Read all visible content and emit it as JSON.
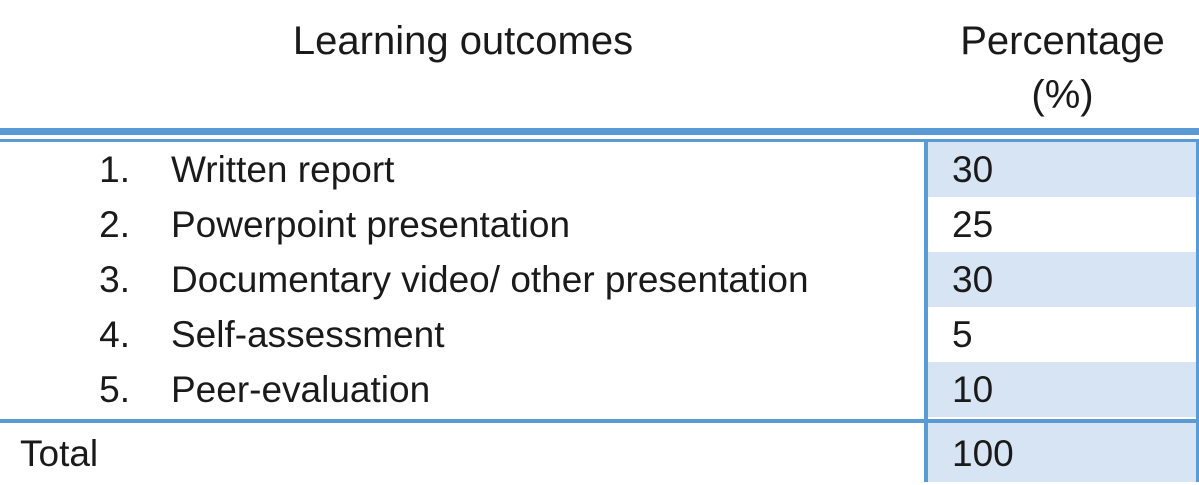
{
  "header": {
    "outcomes_label": "Learning outcomes",
    "percentage_line1": "Percentage",
    "percentage_line2": "(%)"
  },
  "rows": [
    {
      "number": "1.",
      "label": "Written report",
      "percentage": "30"
    },
    {
      "number": "2.",
      "label": "Powerpoint presentation",
      "percentage": "25"
    },
    {
      "number": "3.",
      "label": "Documentary video/ other presentation",
      "percentage": "30"
    },
    {
      "number": "4.",
      "label": "Self-assessment",
      "percentage": "5"
    },
    {
      "number": "5.",
      "label": "Peer-evaluation",
      "percentage": "10"
    }
  ],
  "total": {
    "label": "Total",
    "percentage": "100"
  },
  "colors": {
    "accent_border": "#5b9bd5",
    "shaded_cell": "#d6e4f3"
  }
}
